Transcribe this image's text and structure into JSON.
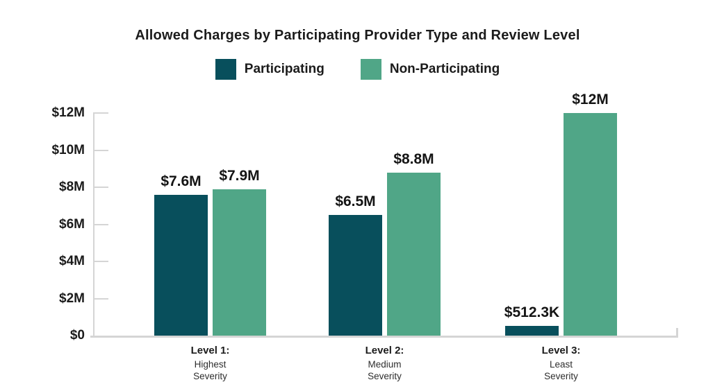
{
  "title": "Allowed Charges by Participating Provider Type and Review Level",
  "colors": {
    "participating": "#084F5C",
    "non_participating": "#50A687",
    "axis": "#D5D5D5",
    "text": "#1B1B1B"
  },
  "chart_data": {
    "type": "bar",
    "title": "Allowed Charges by Participating Provider Type and Review Level",
    "xlabel": "",
    "ylabel": "",
    "grid": false,
    "legend_position": "top",
    "categories": [
      {
        "title": "Level 1:",
        "subtitle_lines": [
          "Highest",
          "Severity"
        ]
      },
      {
        "title": "Level 2:",
        "subtitle_lines": [
          "Medium",
          "Severity"
        ]
      },
      {
        "title": "Level 3:",
        "subtitle_lines": [
          "Least",
          "Severity"
        ]
      }
    ],
    "series": [
      {
        "name": "Participating",
        "color": "#084F5C",
        "values": [
          7600000,
          6500000,
          512300
        ],
        "value_labels": [
          "$7.6M",
          "$6.5M",
          "$512.3K"
        ]
      },
      {
        "name": "Non-Participating",
        "color": "#50A687",
        "values": [
          7900000,
          8800000,
          12000000
        ],
        "value_labels": [
          "$7.9M",
          "$8.8M",
          "$12M"
        ]
      }
    ],
    "y_axis": {
      "min": 0,
      "max": 12000000,
      "tick_values": [
        0,
        2000000,
        4000000,
        6000000,
        8000000,
        10000000,
        12000000
      ],
      "tick_labels": [
        "$0",
        "$2M",
        "$4M",
        "$6M",
        "$8M",
        "$10M",
        "$12M"
      ]
    }
  }
}
